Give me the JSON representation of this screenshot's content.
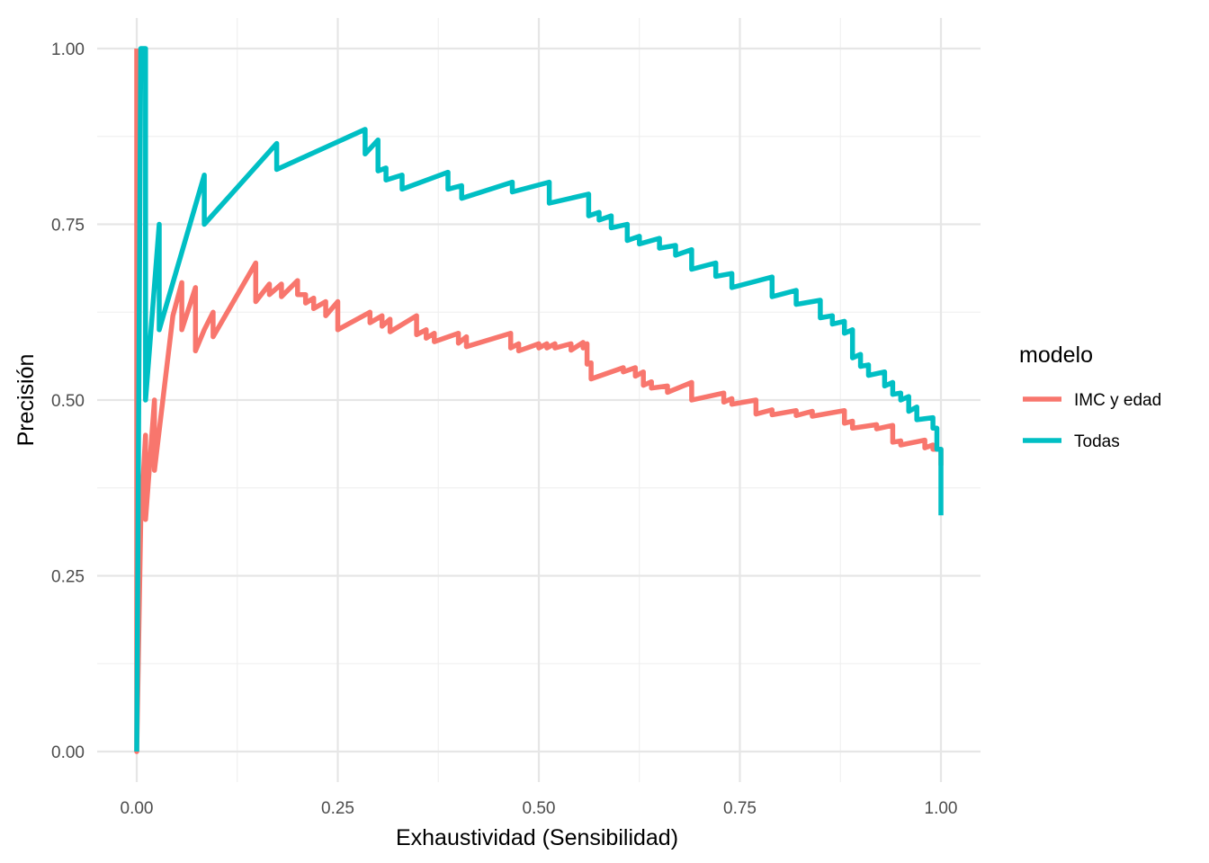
{
  "chart_data": {
    "type": "line",
    "title": "",
    "xlabel": "Exhaustividad (Sensibilidad)",
    "ylabel": "Precisión",
    "xlim": [
      0,
      1
    ],
    "ylim": [
      0,
      1
    ],
    "grid": true,
    "legend_position": "right",
    "legend_title": "modelo",
    "x_ticks": [
      "0.00",
      "0.25",
      "0.50",
      "0.75",
      "1.00"
    ],
    "y_ticks": [
      "0.00",
      "0.25",
      "0.50",
      "0.75",
      "1.00"
    ],
    "series": [
      {
        "name": "IMC y edad",
        "color": "#F8766D",
        "points": [
          [
            0.0,
            1.0
          ],
          [
            0.0,
            0.0
          ],
          [
            0.005,
            0.33
          ],
          [
            0.011,
            0.45
          ],
          [
            0.011,
            0.33
          ],
          [
            0.022,
            0.5
          ],
          [
            0.022,
            0.4
          ],
          [
            0.045,
            0.62
          ],
          [
            0.056,
            0.667
          ],
          [
            0.056,
            0.6
          ],
          [
            0.073,
            0.66
          ],
          [
            0.073,
            0.57
          ],
          [
            0.084,
            0.6
          ],
          [
            0.095,
            0.625
          ],
          [
            0.095,
            0.59
          ],
          [
            0.148,
            0.695
          ],
          [
            0.148,
            0.64
          ],
          [
            0.165,
            0.665
          ],
          [
            0.165,
            0.65
          ],
          [
            0.18,
            0.665
          ],
          [
            0.18,
            0.647
          ],
          [
            0.2,
            0.67
          ],
          [
            0.2,
            0.65
          ],
          [
            0.21,
            0.65
          ],
          [
            0.21,
            0.638
          ],
          [
            0.22,
            0.645
          ],
          [
            0.22,
            0.63
          ],
          [
            0.235,
            0.64
          ],
          [
            0.235,
            0.62
          ],
          [
            0.25,
            0.64
          ],
          [
            0.25,
            0.6
          ],
          [
            0.29,
            0.625
          ],
          [
            0.29,
            0.61
          ],
          [
            0.305,
            0.62
          ],
          [
            0.305,
            0.605
          ],
          [
            0.315,
            0.615
          ],
          [
            0.315,
            0.597
          ],
          [
            0.348,
            0.62
          ],
          [
            0.348,
            0.593
          ],
          [
            0.36,
            0.6
          ],
          [
            0.36,
            0.588
          ],
          [
            0.37,
            0.595
          ],
          [
            0.37,
            0.583
          ],
          [
            0.4,
            0.595
          ],
          [
            0.4,
            0.581
          ],
          [
            0.41,
            0.59
          ],
          [
            0.41,
            0.576
          ],
          [
            0.465,
            0.595
          ],
          [
            0.465,
            0.574
          ],
          [
            0.475,
            0.58
          ],
          [
            0.475,
            0.57
          ],
          [
            0.5,
            0.58
          ],
          [
            0.5,
            0.574
          ],
          [
            0.51,
            0.58
          ],
          [
            0.51,
            0.574
          ],
          [
            0.52,
            0.58
          ],
          [
            0.52,
            0.574
          ],
          [
            0.54,
            0.58
          ],
          [
            0.54,
            0.571
          ],
          [
            0.555,
            0.582
          ],
          [
            0.555,
            0.574
          ],
          [
            0.56,
            0.58
          ],
          [
            0.56,
            0.551
          ],
          [
            0.565,
            0.553
          ],
          [
            0.565,
            0.53
          ],
          [
            0.605,
            0.546
          ],
          [
            0.605,
            0.54
          ],
          [
            0.62,
            0.546
          ],
          [
            0.62,
            0.534
          ],
          [
            0.63,
            0.54
          ],
          [
            0.63,
            0.521
          ],
          [
            0.64,
            0.526
          ],
          [
            0.64,
            0.517
          ],
          [
            0.66,
            0.52
          ],
          [
            0.66,
            0.511
          ],
          [
            0.69,
            0.525
          ],
          [
            0.69,
            0.5
          ],
          [
            0.73,
            0.51
          ],
          [
            0.73,
            0.497
          ],
          [
            0.74,
            0.502
          ],
          [
            0.74,
            0.494
          ],
          [
            0.77,
            0.5
          ],
          [
            0.77,
            0.48
          ],
          [
            0.79,
            0.486
          ],
          [
            0.79,
            0.479
          ],
          [
            0.82,
            0.485
          ],
          [
            0.82,
            0.478
          ],
          [
            0.84,
            0.484
          ],
          [
            0.84,
            0.477
          ],
          [
            0.88,
            0.485
          ],
          [
            0.88,
            0.467
          ],
          [
            0.89,
            0.47
          ],
          [
            0.89,
            0.46
          ],
          [
            0.92,
            0.465
          ],
          [
            0.92,
            0.459
          ],
          [
            0.94,
            0.464
          ],
          [
            0.94,
            0.44
          ],
          [
            0.95,
            0.442
          ],
          [
            0.95,
            0.436
          ],
          [
            0.98,
            0.443
          ],
          [
            0.98,
            0.432
          ],
          [
            0.99,
            0.436
          ],
          [
            0.99,
            0.43
          ],
          [
            1.0,
            0.43
          ],
          [
            1.0,
            0.407
          ]
        ]
      },
      {
        "name": "Todas",
        "color": "#00BFC4",
        "points": [
          [
            0.0,
            0.0
          ],
          [
            0.005,
            1.0
          ],
          [
            0.011,
            1.0
          ],
          [
            0.011,
            0.5
          ],
          [
            0.028,
            0.75
          ],
          [
            0.028,
            0.6
          ],
          [
            0.084,
            0.82
          ],
          [
            0.084,
            0.75
          ],
          [
            0.174,
            0.865
          ],
          [
            0.174,
            0.828
          ],
          [
            0.284,
            0.885
          ],
          [
            0.284,
            0.85
          ],
          [
            0.3,
            0.87
          ],
          [
            0.3,
            0.826
          ],
          [
            0.31,
            0.83
          ],
          [
            0.31,
            0.813
          ],
          [
            0.33,
            0.82
          ],
          [
            0.33,
            0.8
          ],
          [
            0.387,
            0.824
          ],
          [
            0.387,
            0.8
          ],
          [
            0.404,
            0.805
          ],
          [
            0.404,
            0.787
          ],
          [
            0.467,
            0.81
          ],
          [
            0.467,
            0.796
          ],
          [
            0.513,
            0.81
          ],
          [
            0.513,
            0.78
          ],
          [
            0.562,
            0.793
          ],
          [
            0.562,
            0.762
          ],
          [
            0.575,
            0.767
          ],
          [
            0.575,
            0.756
          ],
          [
            0.59,
            0.762
          ],
          [
            0.59,
            0.745
          ],
          [
            0.61,
            0.75
          ],
          [
            0.61,
            0.727
          ],
          [
            0.625,
            0.733
          ],
          [
            0.625,
            0.722
          ],
          [
            0.65,
            0.73
          ],
          [
            0.65,
            0.716
          ],
          [
            0.67,
            0.72
          ],
          [
            0.67,
            0.706
          ],
          [
            0.69,
            0.714
          ],
          [
            0.69,
            0.686
          ],
          [
            0.72,
            0.695
          ],
          [
            0.72,
            0.676
          ],
          [
            0.74,
            0.68
          ],
          [
            0.74,
            0.66
          ],
          [
            0.79,
            0.675
          ],
          [
            0.79,
            0.647
          ],
          [
            0.82,
            0.656
          ],
          [
            0.82,
            0.636
          ],
          [
            0.85,
            0.642
          ],
          [
            0.85,
            0.617
          ],
          [
            0.865,
            0.62
          ],
          [
            0.865,
            0.608
          ],
          [
            0.88,
            0.612
          ],
          [
            0.88,
            0.595
          ],
          [
            0.89,
            0.6
          ],
          [
            0.89,
            0.58
          ],
          [
            0.89,
            0.56
          ],
          [
            0.9,
            0.565
          ],
          [
            0.9,
            0.548
          ],
          [
            0.91,
            0.55
          ],
          [
            0.91,
            0.535
          ],
          [
            0.93,
            0.54
          ],
          [
            0.93,
            0.52
          ],
          [
            0.94,
            0.525
          ],
          [
            0.94,
            0.508
          ],
          [
            0.95,
            0.51
          ],
          [
            0.95,
            0.5
          ],
          [
            0.96,
            0.505
          ],
          [
            0.96,
            0.484
          ],
          [
            0.97,
            0.49
          ],
          [
            0.97,
            0.472
          ],
          [
            0.99,
            0.475
          ],
          [
            0.99,
            0.46
          ],
          [
            0.995,
            0.46
          ],
          [
            0.995,
            0.43
          ],
          [
            1.0,
            0.43
          ],
          [
            1.0,
            0.336
          ]
        ]
      }
    ]
  }
}
